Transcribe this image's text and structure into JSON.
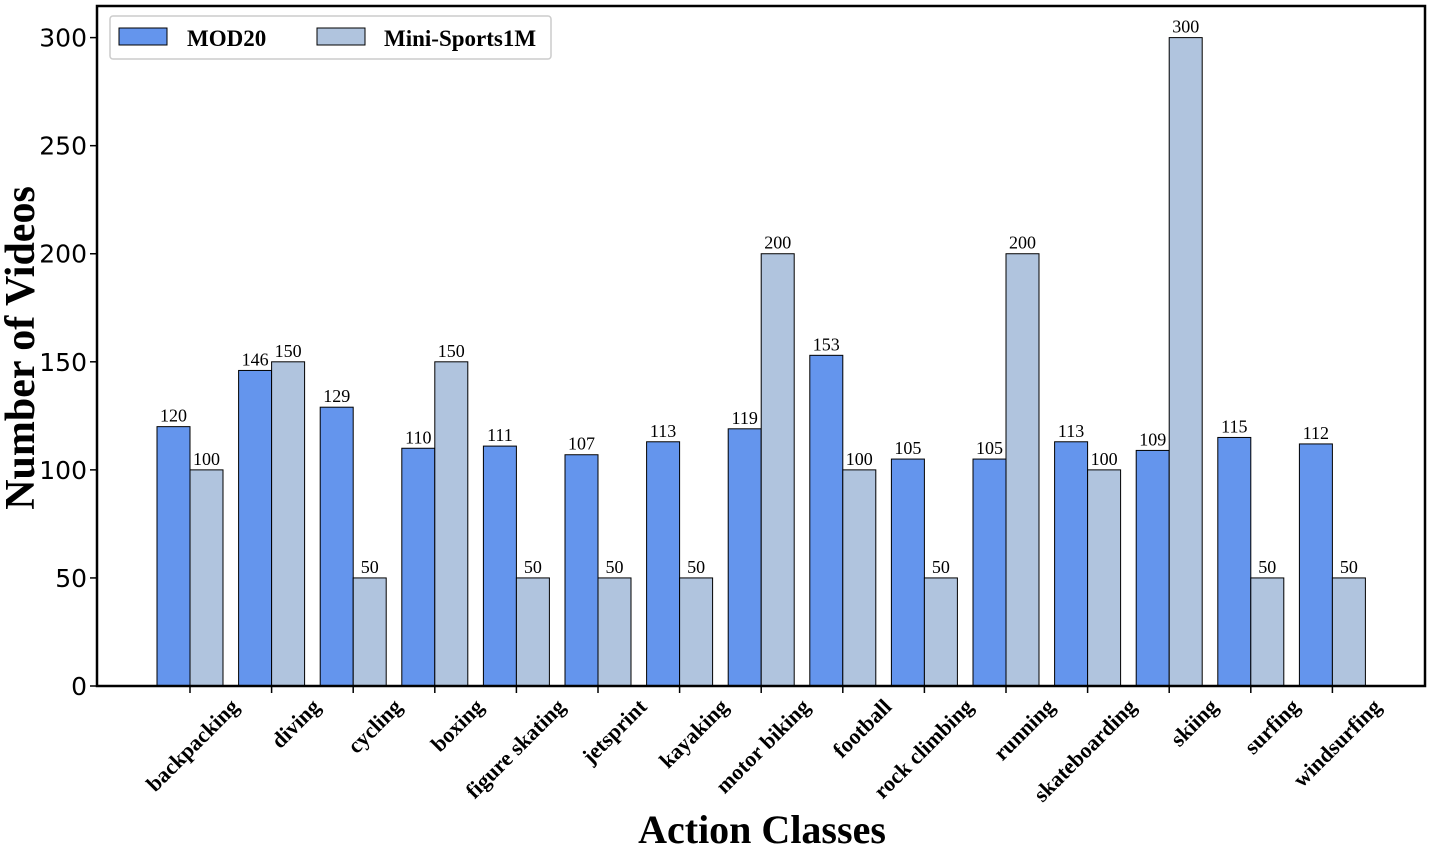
{
  "chart_data": {
    "type": "bar",
    "categories": [
      "backpacking",
      "diving",
      "cycling",
      "boxing",
      "figure skating",
      "jetsprint",
      "kayaking",
      "motor biking",
      "football",
      "rock climbing",
      "running",
      "skateboarding",
      "skiing",
      "surfing",
      "windsurfing"
    ],
    "series": [
      {
        "name": "MOD20",
        "color": "#6495ed",
        "values": [
          120,
          146,
          129,
          110,
          111,
          107,
          113,
          119,
          153,
          105,
          105,
          113,
          109,
          115,
          112
        ]
      },
      {
        "name": "Mini-Sports1M",
        "color": "#b0c4de",
        "values": [
          100,
          150,
          50,
          150,
          50,
          50,
          50,
          200,
          100,
          50,
          200,
          100,
          300,
          50,
          50
        ]
      }
    ],
    "xlabel": "Action Classes",
    "ylabel": "Number of Videos",
    "yticks": [
      0,
      50,
      100,
      150,
      200,
      250,
      300
    ],
    "ylim": [
      0,
      315
    ],
    "grid": false,
    "legend_position": "top-left",
    "data_labels": true
  }
}
